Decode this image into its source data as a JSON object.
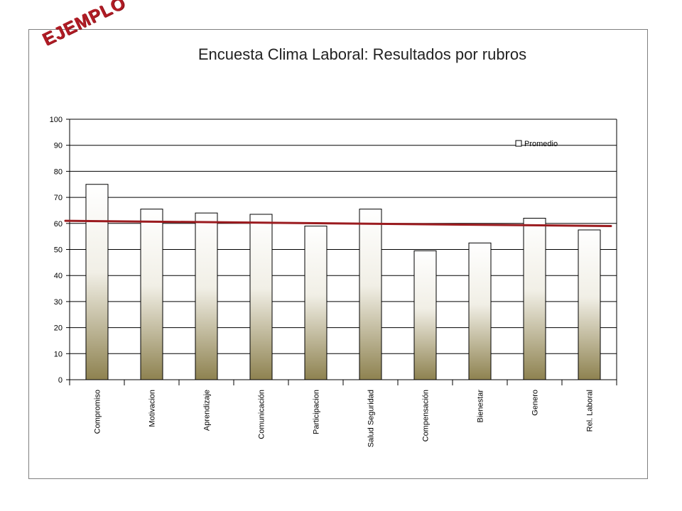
{
  "watermark": "EJEMPLO",
  "chart_data": {
    "type": "bar",
    "title": "Encuesta Clima Laboral:  Resultados por rubros",
    "xlabel": "",
    "ylabel": "",
    "ylim": [
      0,
      100
    ],
    "yticks": [
      0,
      10,
      20,
      30,
      40,
      50,
      60,
      70,
      80,
      90,
      100
    ],
    "grid": true,
    "legend_position": "top-right",
    "categories": [
      "Compromiso",
      "Motivacion",
      "Aprendizaje",
      "Comunicación",
      "Participacion",
      "Salud Seguridad",
      "Compensación",
      "Bienestar",
      "Genero",
      "Rel. Laboral"
    ],
    "series": [
      {
        "name": "Promedio",
        "values": [
          75,
          65.5,
          64,
          63.5,
          59,
          65.5,
          49.5,
          52.5,
          62,
          57.5
        ]
      }
    ],
    "trendline": {
      "start": 61,
      "end": 59,
      "color": "#9b1b1f"
    },
    "colors": {
      "bar_top": "#ffffff",
      "bar_bottom": "#8e8250",
      "bar_border": "#000000",
      "grid": "#000000"
    }
  }
}
